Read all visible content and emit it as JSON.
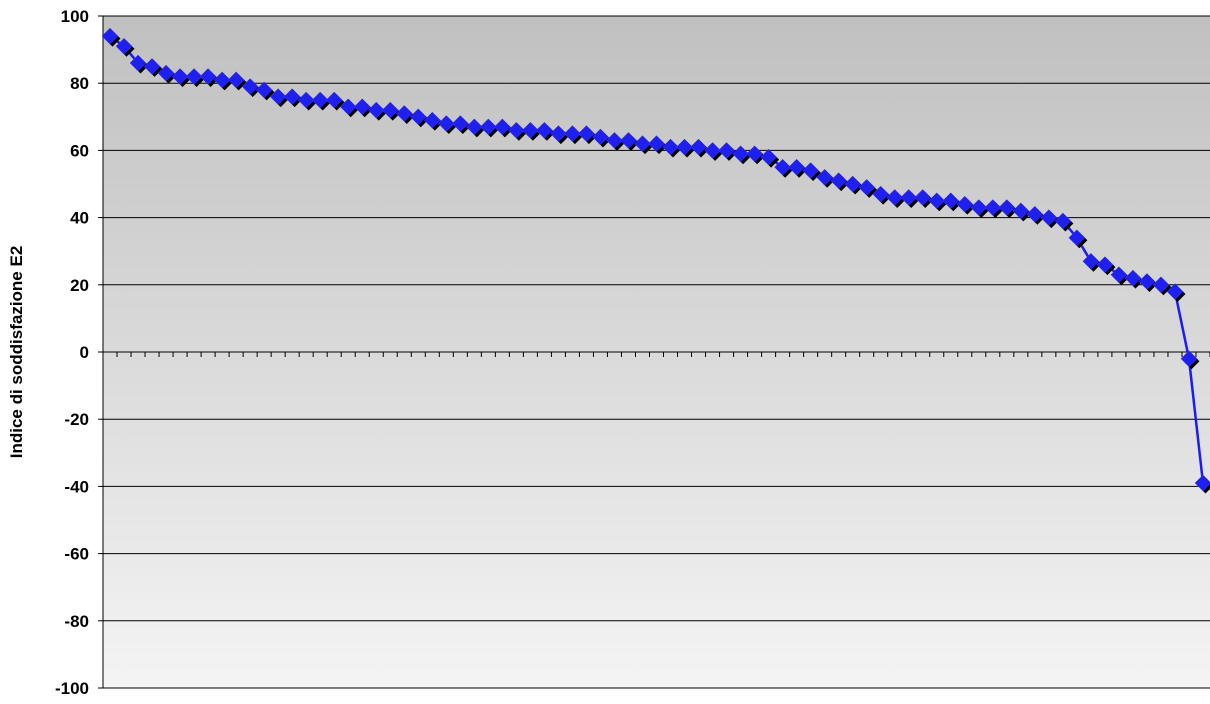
{
  "chart_data": {
    "type": "line",
    "title": "",
    "xlabel": "",
    "ylabel": "Indice di soddisfazione E2",
    "ylim": [
      -100,
      100
    ],
    "yticks": [
      100,
      80,
      60,
      40,
      20,
      0,
      -20,
      -40,
      -60,
      -80,
      -100
    ],
    "ytick_labels": [
      "100",
      "80",
      "60",
      "40",
      "20",
      "0",
      "-20",
      "-40",
      "-60",
      "-80",
      "-100"
    ],
    "grid": true,
    "legend": "none",
    "marker": "diamond",
    "colors": {
      "line": "#1a1aff",
      "marker": "#2020ee",
      "marker_shadow": "#000000",
      "plot_bg_top": "#c0c0c0",
      "plot_bg_bottom": "#f4f4f4"
    },
    "series": [
      {
        "values": [
          94,
          91,
          86,
          85,
          83,
          82,
          82,
          82,
          81,
          81,
          79,
          78,
          76,
          76,
          75,
          75,
          75,
          73,
          73,
          72,
          72,
          71,
          70,
          69,
          68,
          68,
          67,
          67,
          67,
          66,
          66,
          66,
          65,
          65,
          65,
          64,
          63,
          63,
          62,
          62,
          61,
          61,
          61,
          60,
          60,
          59,
          59,
          58,
          55,
          55,
          54,
          52,
          51,
          50,
          49,
          47,
          46,
          46,
          46,
          45,
          45,
          44,
          43,
          43,
          43,
          42,
          41,
          40,
          39,
          34,
          27,
          26,
          23,
          22,
          21,
          20,
          18,
          -2,
          -39
        ]
      }
    ]
  }
}
